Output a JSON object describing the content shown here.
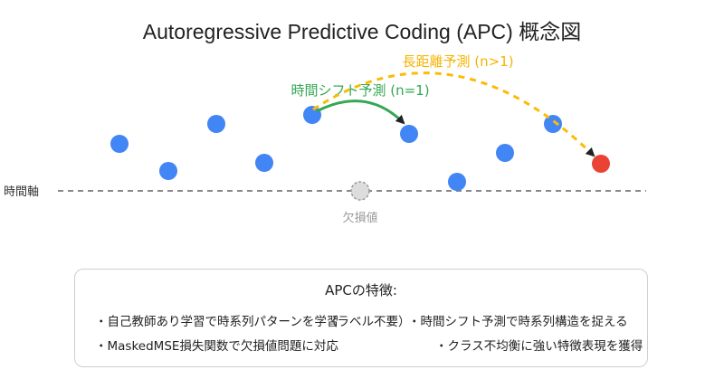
{
  "title": "Autoregressive Predictive Coding (APC) 概念図",
  "diagram": {
    "time_axis_label": "時間軸",
    "missing_label": "欠損値",
    "short_shift_label": "時間シフト予測 (n=1)",
    "long_shift_label": "長距離予測 (n>1)",
    "colors": {
      "point": "#4285f4",
      "target_point": "#ea4335",
      "missing_point": "#cccccc",
      "short_arrow": "#34a853",
      "long_arrow": "#fbbc05",
      "axis": "#888888"
    }
  },
  "features": {
    "heading": "APCの特徴:",
    "items": [
      "・自己教師あり学習で時系列パターンを学習",
      "（ラベル不要）",
      "・時間シフト予測で時系列構造を捉える",
      "・MaskedMSE損失関数で欠損値問題に対応",
      "・クラス不均衡に強い特徴表現を獲得"
    ]
  }
}
